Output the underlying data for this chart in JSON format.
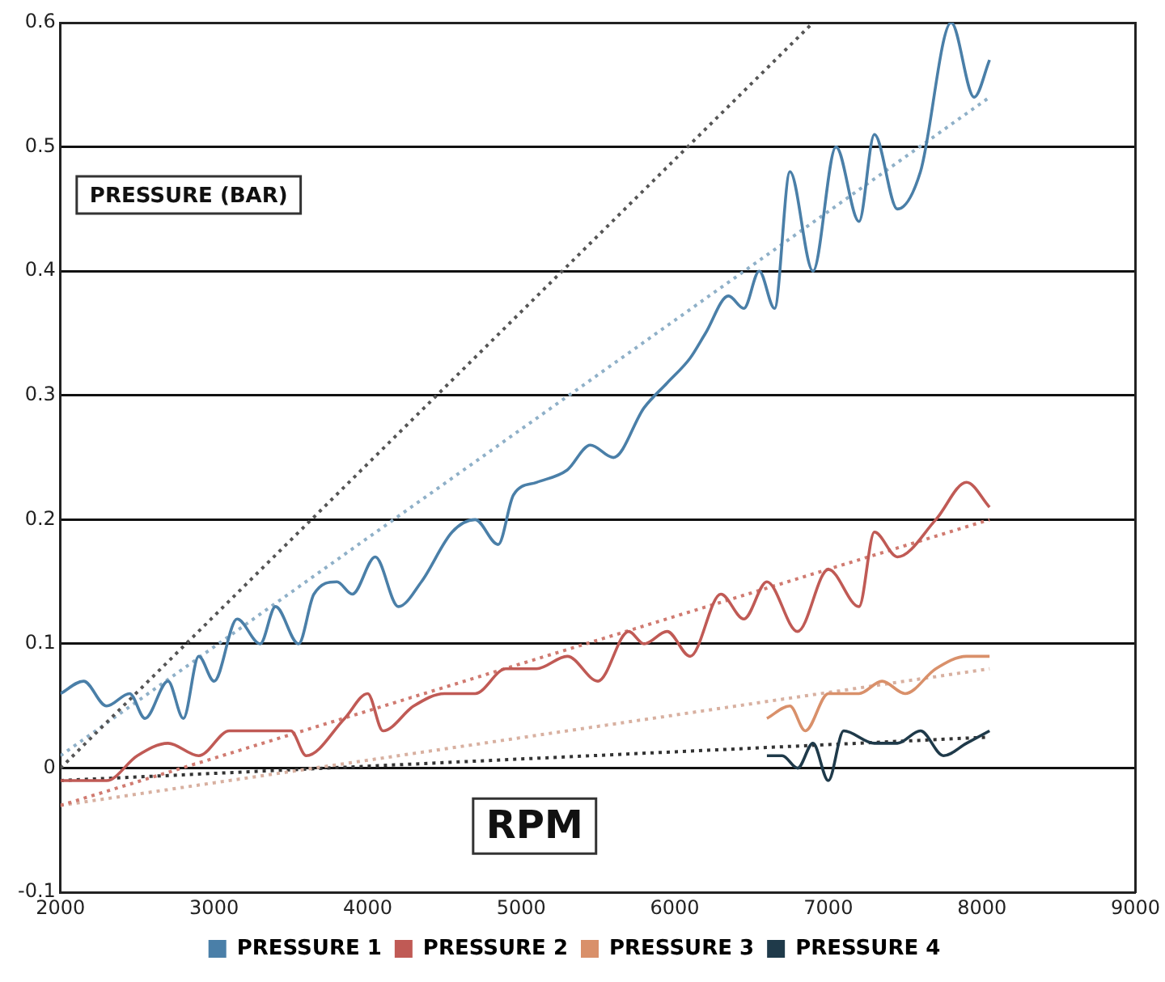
{
  "chart_data": {
    "type": "line",
    "xlabel": "RPM",
    "ylabel": "PRESSURE (BAR)",
    "xlim": [
      2000,
      9000
    ],
    "xticks": [
      2000,
      3000,
      4000,
      5000,
      6000,
      7000,
      8000,
      9000
    ],
    "ylim": [
      -0.1,
      0.6
    ],
    "yticks": [
      -0.1,
      0,
      0.1,
      0.2,
      0.3,
      0.4,
      0.5,
      0.6
    ],
    "grid": "y",
    "legend": "bottom",
    "marker": "none",
    "series": [
      {
        "name": "PRESSURE 1",
        "color": "#4a7fa8",
        "line_style": "solid",
        "x": [
          2000,
          2150,
          2300,
          2450,
          2550,
          2700,
          2800,
          2900,
          3000,
          3150,
          3300,
          3400,
          3550,
          3650,
          3800,
          3900,
          4050,
          4200,
          4350,
          4550,
          4700,
          4850,
          4950,
          5100,
          5300,
          5450,
          5600,
          5800,
          5950,
          6100,
          6200,
          6350,
          6450,
          6550,
          6650,
          6750,
          6900,
          7050,
          7200,
          7300,
          7450,
          7600,
          7800,
          7950,
          8050
        ],
        "values": [
          0.06,
          0.07,
          0.05,
          0.06,
          0.04,
          0.07,
          0.04,
          0.09,
          0.07,
          0.12,
          0.1,
          0.13,
          0.1,
          0.14,
          0.15,
          0.14,
          0.17,
          0.13,
          0.15,
          0.19,
          0.2,
          0.18,
          0.22,
          0.23,
          0.24,
          0.26,
          0.25,
          0.29,
          0.31,
          0.33,
          0.35,
          0.38,
          0.37,
          0.4,
          0.37,
          0.48,
          0.4,
          0.5,
          0.44,
          0.51,
          0.45,
          0.48,
          0.6,
          0.54,
          0.57
        ]
      },
      {
        "name": "PRESSURE 2",
        "color": "#c05a55",
        "line_style": "solid",
        "x": [
          2000,
          2300,
          2500,
          2700,
          2900,
          3100,
          3300,
          3500,
          3600,
          3850,
          4000,
          4100,
          4300,
          4500,
          4700,
          4900,
          5100,
          5300,
          5500,
          5700,
          5800,
          5950,
          6100,
          6300,
          6450,
          6600,
          6800,
          7000,
          7200,
          7300,
          7450,
          7700,
          7900,
          8050
        ],
        "values": [
          -0.01,
          -0.01,
          0.01,
          0.02,
          0.01,
          0.03,
          0.03,
          0.03,
          0.01,
          0.04,
          0.06,
          0.03,
          0.05,
          0.06,
          0.06,
          0.08,
          0.08,
          0.09,
          0.07,
          0.11,
          0.1,
          0.11,
          0.09,
          0.14,
          0.12,
          0.15,
          0.11,
          0.16,
          0.13,
          0.19,
          0.17,
          0.2,
          0.23,
          0.21
        ]
      },
      {
        "name": "PRESSURE 3",
        "color": "#d9906a",
        "line_style": "solid",
        "x": [
          6600,
          6750,
          6850,
          7000,
          7200,
          7350,
          7500,
          7700,
          7900,
          8050
        ],
        "values": [
          0.04,
          0.05,
          0.03,
          0.06,
          0.06,
          0.07,
          0.06,
          0.08,
          0.09,
          0.09
        ]
      },
      {
        "name": "PRESSURE 4",
        "color": "#1f3a4a",
        "line_style": "solid",
        "x": [
          6600,
          6700,
          6800,
          6900,
          7000,
          7100,
          7300,
          7450,
          7600,
          7750,
          7900,
          8050
        ],
        "values": [
          0.01,
          0.01,
          0.0,
          0.02,
          -0.01,
          0.03,
          0.02,
          0.02,
          0.03,
          0.01,
          0.02,
          0.03
        ]
      },
      {
        "type": "line",
        "color": "#555555",
        "line_style": "dotted",
        "x": [
          2000,
          6900
        ],
        "values": [
          0.0,
          0.6
        ]
      },
      {
        "type": "line",
        "color": "#8fb0c8",
        "line_style": "dotted",
        "x": [
          2000,
          8050
        ],
        "values": [
          0.01,
          0.54
        ]
      },
      {
        "type": "line",
        "color": "#d07a70",
        "line_style": "dotted",
        "x": [
          2000,
          8050
        ],
        "values": [
          -0.03,
          0.2
        ]
      },
      {
        "type": "line",
        "color": "#d8b0a0",
        "line_style": "dotted",
        "x": [
          2000,
          8050
        ],
        "values": [
          -0.03,
          0.08
        ]
      },
      {
        "type": "line",
        "color": "#333333",
        "line_style": "dotted",
        "x": [
          2000,
          8050
        ],
        "values": [
          -0.01,
          0.025
        ]
      }
    ]
  }
}
